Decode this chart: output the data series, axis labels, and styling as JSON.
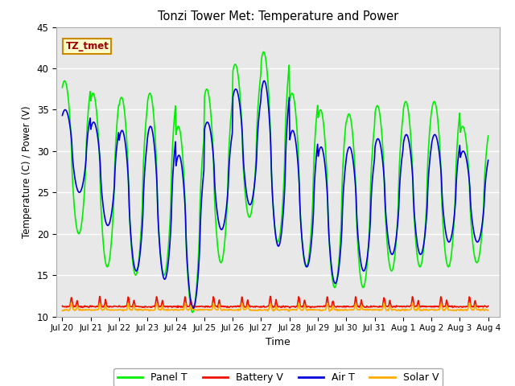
{
  "title": "Tonzi Tower Met: Temperature and Power",
  "xlabel": "Time",
  "ylabel": "Temperature (C) / Power (V)",
  "ylim": [
    10,
    45
  ],
  "yticks": [
    10,
    15,
    20,
    25,
    30,
    35,
    40,
    45
  ],
  "annotation_text": "TZ_tmet",
  "bg_color": "#ffffff",
  "plot_bg_color": "#e8e8e8",
  "line_panel_t_color": "#00ee00",
  "line_battery_v_color": "#ee1100",
  "line_air_t_color": "#0000dd",
  "line_solar_v_color": "#ffaa00",
  "line_width": 1.2,
  "legend_labels": [
    "Panel T",
    "Battery V",
    "Air T",
    "Solar V"
  ],
  "tick_labels": [
    "Jul 20",
    "Jul 21",
    "Jul 22",
    "Jul 23",
    "Jul 24",
    "Jul 25",
    "Jul 26",
    "Jul 27",
    "Jul 28",
    "Jul 29",
    "Jul 30",
    "Jul 31",
    "Aug 1",
    "Aug 2",
    "Aug 3",
    "Aug 4"
  ],
  "figsize": [
    6.4,
    4.8
  ],
  "dpi": 100
}
